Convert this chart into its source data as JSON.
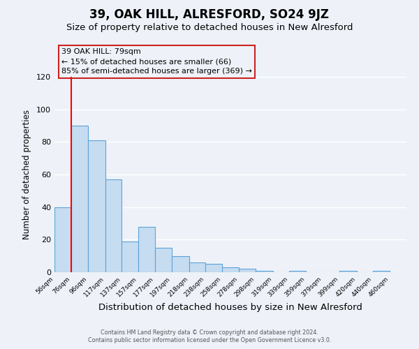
{
  "title": "39, OAK HILL, ALRESFORD, SO24 9JZ",
  "subtitle": "Size of property relative to detached houses in New Alresford",
  "xlabel": "Distribution of detached houses by size in New Alresford",
  "ylabel": "Number of detached properties",
  "bar_left_edges": [
    56,
    76,
    96,
    117,
    137,
    157,
    177,
    197,
    218,
    238,
    258,
    278,
    298,
    319,
    339,
    359,
    379,
    399,
    420,
    440
  ],
  "bar_widths": [
    20,
    20,
    21,
    20,
    20,
    20,
    20,
    21,
    20,
    20,
    20,
    20,
    21,
    20,
    20,
    20,
    20,
    21,
    20,
    20
  ],
  "bar_heights": [
    40,
    90,
    81,
    57,
    19,
    28,
    15,
    10,
    6,
    5,
    3,
    2,
    1,
    0,
    1,
    0,
    0,
    1,
    0,
    1
  ],
  "bar_color": "#c6dcf0",
  "bar_edgecolor": "#5ba3d9",
  "ylim": [
    0,
    120
  ],
  "yticks": [
    0,
    20,
    40,
    60,
    80,
    100,
    120
  ],
  "tick_labels": [
    "56sqm",
    "76sqm",
    "96sqm",
    "117sqm",
    "137sqm",
    "157sqm",
    "177sqm",
    "197sqm",
    "218sqm",
    "238sqm",
    "258sqm",
    "278sqm",
    "298sqm",
    "319sqm",
    "339sqm",
    "359sqm",
    "379sqm",
    "399sqm",
    "420sqm",
    "440sqm",
    "460sqm"
  ],
  "tick_positions": [
    56,
    76,
    96,
    117,
    137,
    157,
    177,
    197,
    218,
    238,
    258,
    278,
    298,
    319,
    339,
    359,
    379,
    399,
    420,
    440,
    460
  ],
  "red_line_x": 76,
  "annotation_title": "39 OAK HILL: 79sqm",
  "annotation_line1": "← 15% of detached houses are smaller (66)",
  "annotation_line2": "85% of semi-detached houses are larger (369) →",
  "footer_line1": "Contains HM Land Registry data © Crown copyright and database right 2024.",
  "footer_line2": "Contains public sector information licensed under the Open Government Licence v3.0.",
  "background_color": "#eef2f8",
  "grid_color": "#ffffff",
  "title_fontsize": 12,
  "subtitle_fontsize": 9.5,
  "xlabel_fontsize": 9.5,
  "ylabel_fontsize": 8.5
}
